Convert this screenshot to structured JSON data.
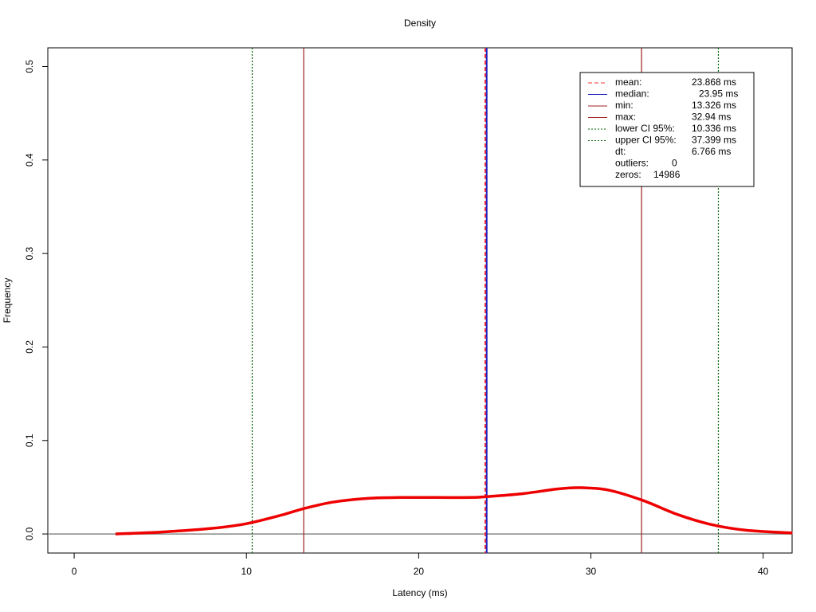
{
  "chart_data": {
    "type": "density",
    "title": "Density",
    "x_label": "Latency (ms)",
    "y_label": "Frequency",
    "xlim": [
      -1.53,
      41.68
    ],
    "ylim": [
      -0.0204,
      0.52
    ],
    "xticks": [
      0,
      10,
      20,
      30,
      40
    ],
    "yticks": [
      {
        "value": 0,
        "label": "0.0"
      },
      {
        "value": 0.1,
        "label": "0.1"
      },
      {
        "value": 0.2,
        "label": "0.2"
      },
      {
        "value": 0.3,
        "label": "0.3"
      },
      {
        "value": 0.4,
        "label": "0.4"
      },
      {
        "value": 0.5,
        "label": "0.5"
      }
    ],
    "baseline": 0,
    "series": [
      {
        "name": "density",
        "color": "#ee0000",
        "x": [
          2.4,
          5,
          8,
          10,
          12,
          13.3,
          15,
          17,
          19,
          21,
          23,
          24,
          26,
          28,
          29.3,
          31,
          33,
          35,
          37,
          39,
          41.7
        ],
        "values": [
          0,
          0.002,
          0.006,
          0.011,
          0.02,
          0.027,
          0.034,
          0.038,
          0.039,
          0.039,
          0.039,
          0.04,
          0.043,
          0.048,
          0.0495,
          0.047,
          0.036,
          0.021,
          0.01,
          0.004,
          0.001
        ]
      }
    ],
    "reference_lines": [
      {
        "name": "mean:",
        "value": 23.868,
        "value_label": "23.868 ms",
        "color": "#ff3030",
        "style": "dashed"
      },
      {
        "name": "median:",
        "value": 23.95,
        "value_label": "23.95 ms",
        "color": "#2020c0",
        "style": "solid"
      },
      {
        "name": "min:",
        "value": 13.326,
        "value_label": "13.326 ms",
        "color": "#a02020",
        "style": "solid"
      },
      {
        "name": "max:",
        "value": 32.94,
        "value_label": "32.94 ms",
        "color": "#a02020",
        "style": "solid"
      },
      {
        "name": "lower CI 95%:",
        "value": 10.336,
        "value_label": "10.336 ms",
        "color": "#006400",
        "style": "dotted"
      },
      {
        "name": "upper CI 95%:",
        "value": 37.399,
        "value_label": "37.399 ms",
        "color": "#006400",
        "style": "dotted"
      }
    ],
    "legend_extra": [
      {
        "name": "dt:",
        "value": 6.766,
        "value_label": "6.766 ms"
      },
      {
        "name": "outliers:",
        "value": 0
      },
      {
        "name": "zeros:",
        "value": 14986
      }
    ]
  }
}
